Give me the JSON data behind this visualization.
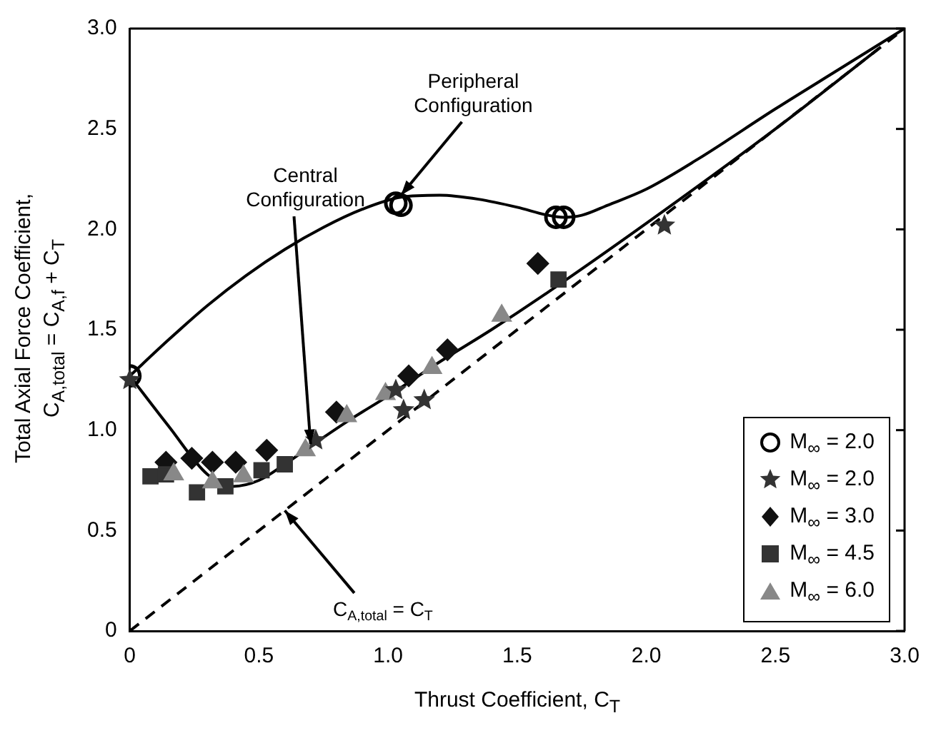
{
  "chart_data": {
    "type": "scatter",
    "xlabel": "Thrust Coefficient, C$_{T}$",
    "ylabel": "Total Axial Force Coefficient,\nC$_{A,total}$ = C$_{A,f}$ + C$_{T}$",
    "xlim": [
      0,
      3
    ],
    "ylim": [
      0,
      3
    ],
    "xticks": [
      0,
      0.5,
      {
        "value": 1,
        "label": "1.0"
      },
      1.5,
      {
        "value": 2,
        "label": "2.0"
      },
      2.5,
      {
        "value": 3,
        "label": "3.0"
      }
    ],
    "yticks": [
      0,
      0.5,
      {
        "value": 1,
        "label": "1.0"
      },
      1.5,
      {
        "value": 2,
        "label": "2.0"
      },
      2.5,
      {
        "value": 3,
        "label": "3.0"
      }
    ],
    "grid": false,
    "legend": "bottom right",
    "series": [
      {
        "type": "line",
        "color": "#000000",
        "marker": "none",
        "line_style": "solid",
        "x": [
          0,
          0.15,
          0.3,
          0.45,
          0.6,
          0.75,
          0.9,
          1.05,
          1.2,
          1.35,
          1.5,
          1.62,
          1.68,
          1.75,
          1.85,
          2.0,
          2.2,
          2.5,
          2.75,
          3.0
        ],
        "values": [
          1.27,
          1.45,
          1.62,
          1.77,
          1.9,
          2.01,
          2.1,
          2.16,
          2.17,
          2.15,
          2.11,
          2.07,
          2.06,
          2.07,
          2.12,
          2.2,
          2.35,
          2.6,
          2.8,
          3.0
        ]
      },
      {
        "type": "line",
        "color": "#000000",
        "marker": "none",
        "line_style": "solid",
        "x": [
          0,
          0.15,
          0.3,
          0.4,
          0.5,
          0.6,
          0.7,
          0.85,
          1.0,
          1.2,
          1.4,
          1.6,
          2.0,
          2.5,
          2.9
        ],
        "values": [
          1.27,
          1.02,
          0.78,
          0.72,
          0.75,
          0.83,
          0.92,
          1.05,
          1.17,
          1.34,
          1.5,
          1.67,
          2.03,
          2.5,
          2.9
        ]
      },
      {
        "type": "line",
        "color": "#000000",
        "marker": "none",
        "line_style": "dashed",
        "x": [
          0,
          3
        ],
        "values": [
          0,
          3
        ]
      },
      {
        "name": "M$_{∞}$ = 2.0",
        "type": "scatter",
        "marker": "circle",
        "color": "#000000",
        "x": [
          0,
          1.03,
          1.05,
          1.65,
          1.68
        ],
        "values": [
          1.27,
          2.13,
          2.12,
          2.06,
          2.06
        ]
      },
      {
        "name": "M$_{∞}$ = 2.0",
        "type": "scatter",
        "marker": "star",
        "color": "#333333",
        "x": [
          0,
          0.72,
          1.03,
          1.06,
          1.14,
          2.07
        ],
        "values": [
          1.25,
          0.95,
          1.2,
          1.1,
          1.15,
          2.02
        ]
      },
      {
        "name": "M$_{∞}$ = 3.0",
        "type": "scatter",
        "marker": "diamond",
        "color": "#111111",
        "x": [
          0.14,
          0.24,
          0.32,
          0.41,
          0.53,
          0.8,
          1.08,
          1.23,
          1.58
        ],
        "values": [
          0.84,
          0.86,
          0.84,
          0.84,
          0.9,
          1.09,
          1.27,
          1.4,
          1.83
        ]
      },
      {
        "name": "M$_{∞}$ = 4.5",
        "type": "scatter",
        "marker": "square",
        "color": "#333333",
        "x": [
          0.08,
          0.14,
          0.26,
          0.37,
          0.51,
          0.6,
          1.66
        ],
        "values": [
          0.77,
          0.78,
          0.69,
          0.72,
          0.8,
          0.83,
          1.75
        ]
      },
      {
        "name": "M$_{∞}$ = 6.0",
        "type": "scatter",
        "marker": "triangle",
        "color": "#888888",
        "x": [
          0.17,
          0.32,
          0.44,
          0.68,
          0.84,
          0.99,
          1.17,
          1.44
        ],
        "values": [
          0.78,
          0.74,
          0.77,
          0.9,
          1.07,
          1.18,
          1.31,
          1.57
        ]
      }
    ],
    "annotations": [
      {
        "text": "Peripheral\nConfiguration",
        "x": 1.05,
        "y": 2.17
      },
      {
        "text": "Central\nConfiguration",
        "x": 0.7,
        "y": 0.93
      },
      {
        "text": "C$_{A,total}$ = C$_{T}$",
        "x": 0.6,
        "y": 0.6
      }
    ]
  }
}
